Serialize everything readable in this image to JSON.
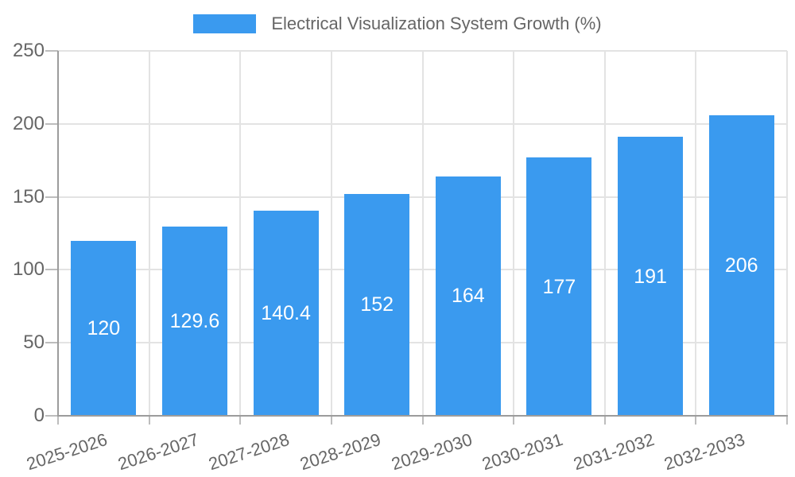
{
  "legend": {
    "label": "Electrical Visualization System Growth (%)"
  },
  "chart_data": {
    "type": "bar",
    "title": "Electrical Visualization System Growth (%)",
    "categories": [
      "2025-2026",
      "2026-2027",
      "2027-2028",
      "2028-2029",
      "2029-2030",
      "2030-2031",
      "2031-2032",
      "2032-2033"
    ],
    "values": [
      120,
      129.6,
      140.4,
      152,
      164,
      177,
      191,
      206
    ],
    "xlabel": "",
    "ylabel": "",
    "ylim": [
      0,
      250
    ],
    "yticks": [
      0,
      50,
      100,
      150,
      200,
      250
    ],
    "grid": true,
    "grid_vertical": true,
    "legend_position": "top-center",
    "value_labels_inside_bars": true,
    "x_label_rotation_deg": -18,
    "colors": {
      "bar": "#3a9aef",
      "bar_label": "#ffffff",
      "axis_text": "#666666",
      "axis_line": "#9c9c9c",
      "tick": "#bdbdbd",
      "gridline": "#e3e3e3",
      "background": "#ffffff"
    }
  }
}
